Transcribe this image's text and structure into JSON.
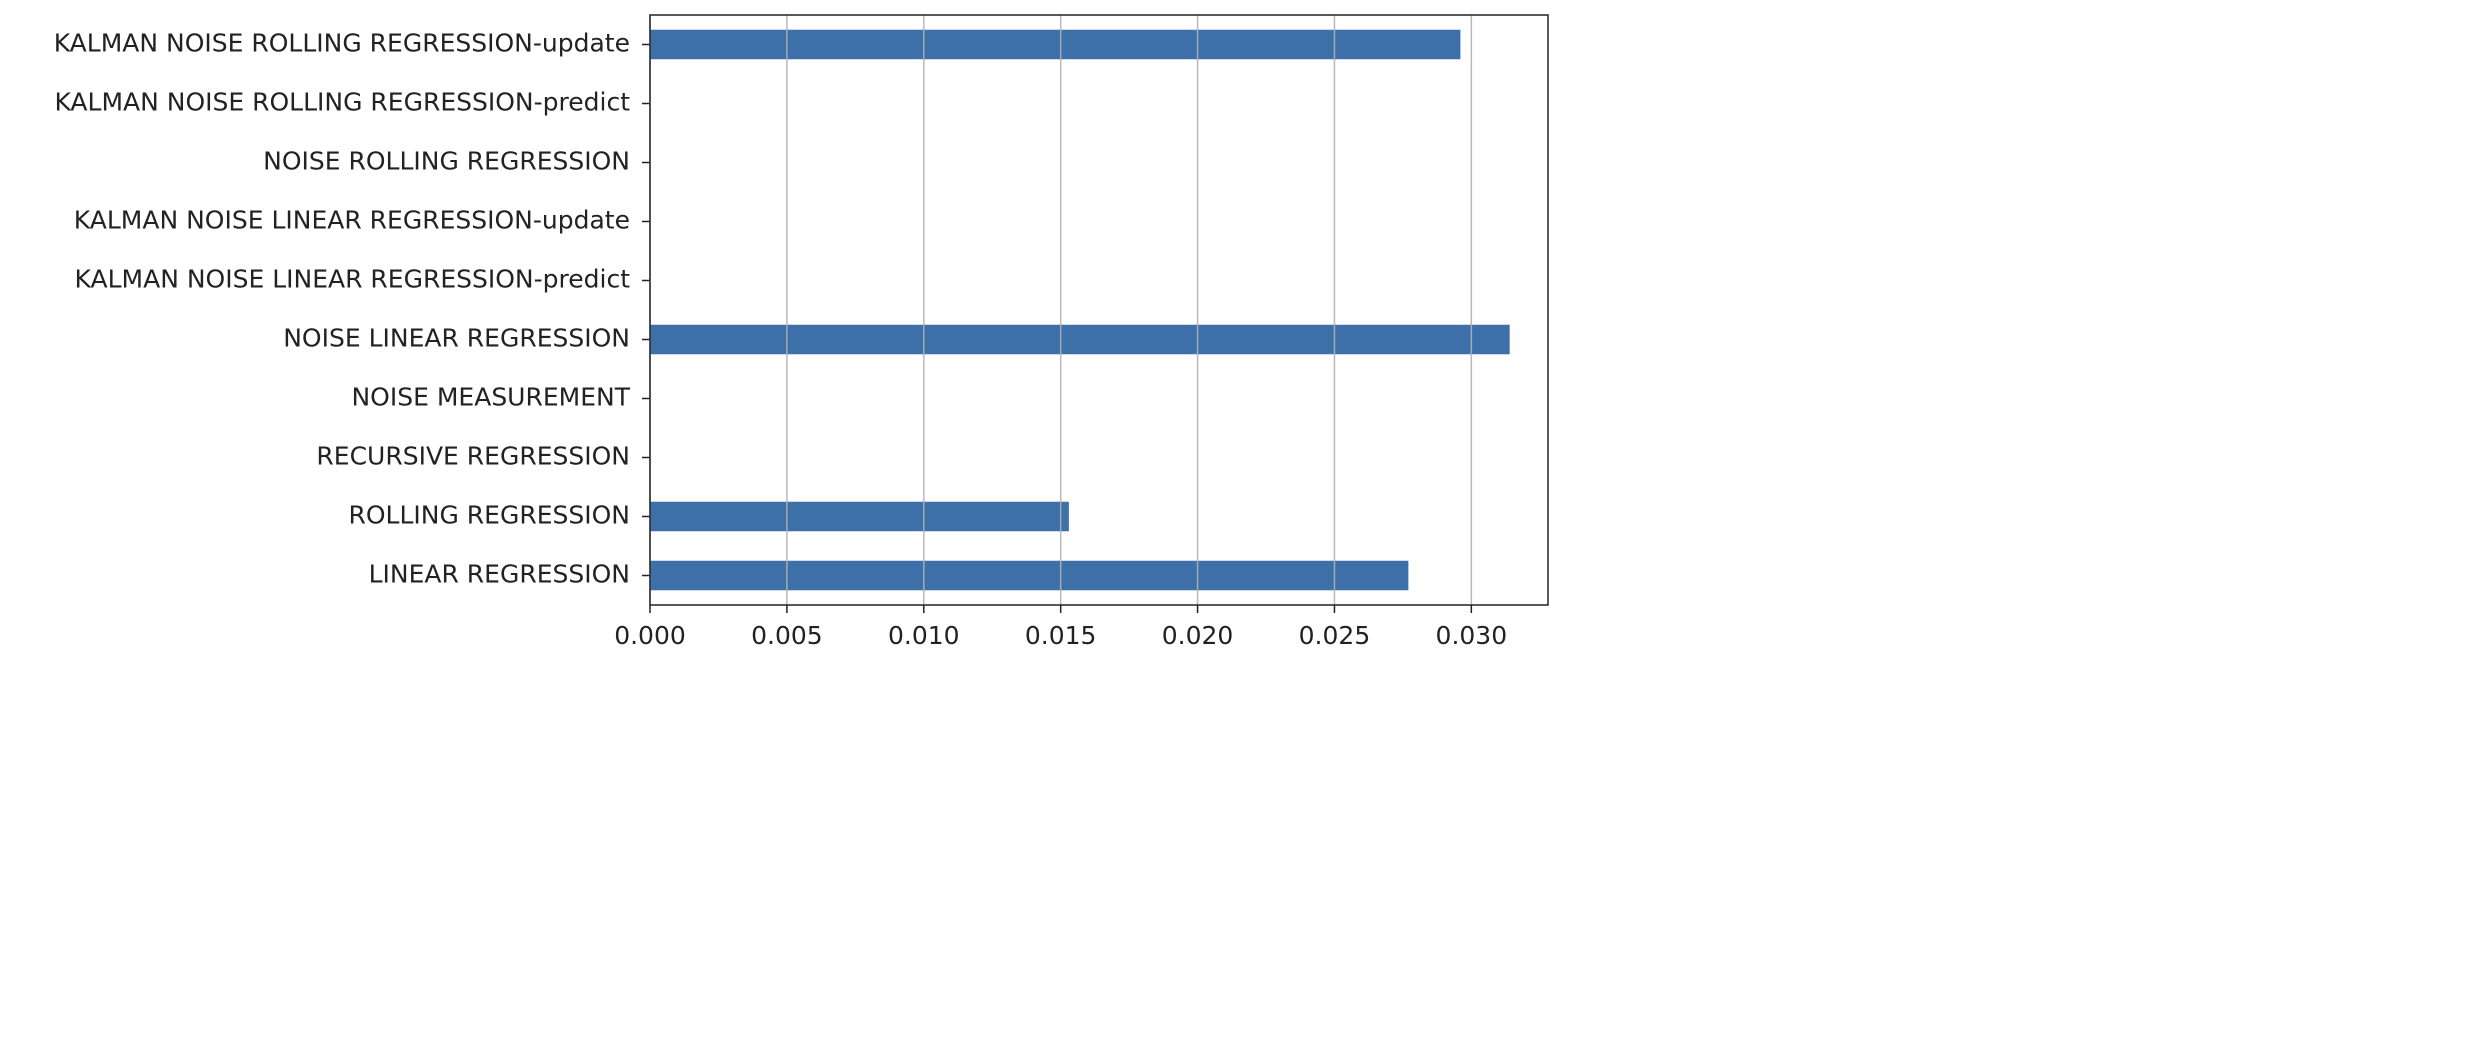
{
  "chart_data": {
    "type": "barh",
    "categories": [
      "LINEAR REGRESSION",
      "ROLLING REGRESSION",
      "RECURSIVE REGRESSION",
      "NOISE MEASUREMENT",
      "NOISE LINEAR REGRESSION",
      "KALMAN NOISE LINEAR REGRESSION-predict",
      "KALMAN NOISE LINEAR REGRESSION-update",
      "NOISE ROLLING REGRESSION",
      "KALMAN NOISE ROLLING REGRESSION-predict",
      "KALMAN NOISE ROLLING REGRESSION-update"
    ],
    "values": [
      0.0277,
      0.0153,
      0,
      0,
      0.0314,
      0,
      0,
      0,
      0,
      0.0296
    ],
    "color": "#3d6fa9",
    "xlim": [
      0,
      0.0328
    ],
    "xticks": [
      {
        "value": 0,
        "label": "0.000"
      },
      {
        "value": 0.005,
        "label": "0.005"
      },
      {
        "value": 0.01,
        "label": "0.010"
      },
      {
        "value": 0.015,
        "label": "0.015"
      },
      {
        "value": 0.02,
        "label": "0.020"
      },
      {
        "value": 0.025,
        "label": "0.025"
      },
      {
        "value": 0.03,
        "label": "0.030"
      }
    ],
    "grid": true
  }
}
